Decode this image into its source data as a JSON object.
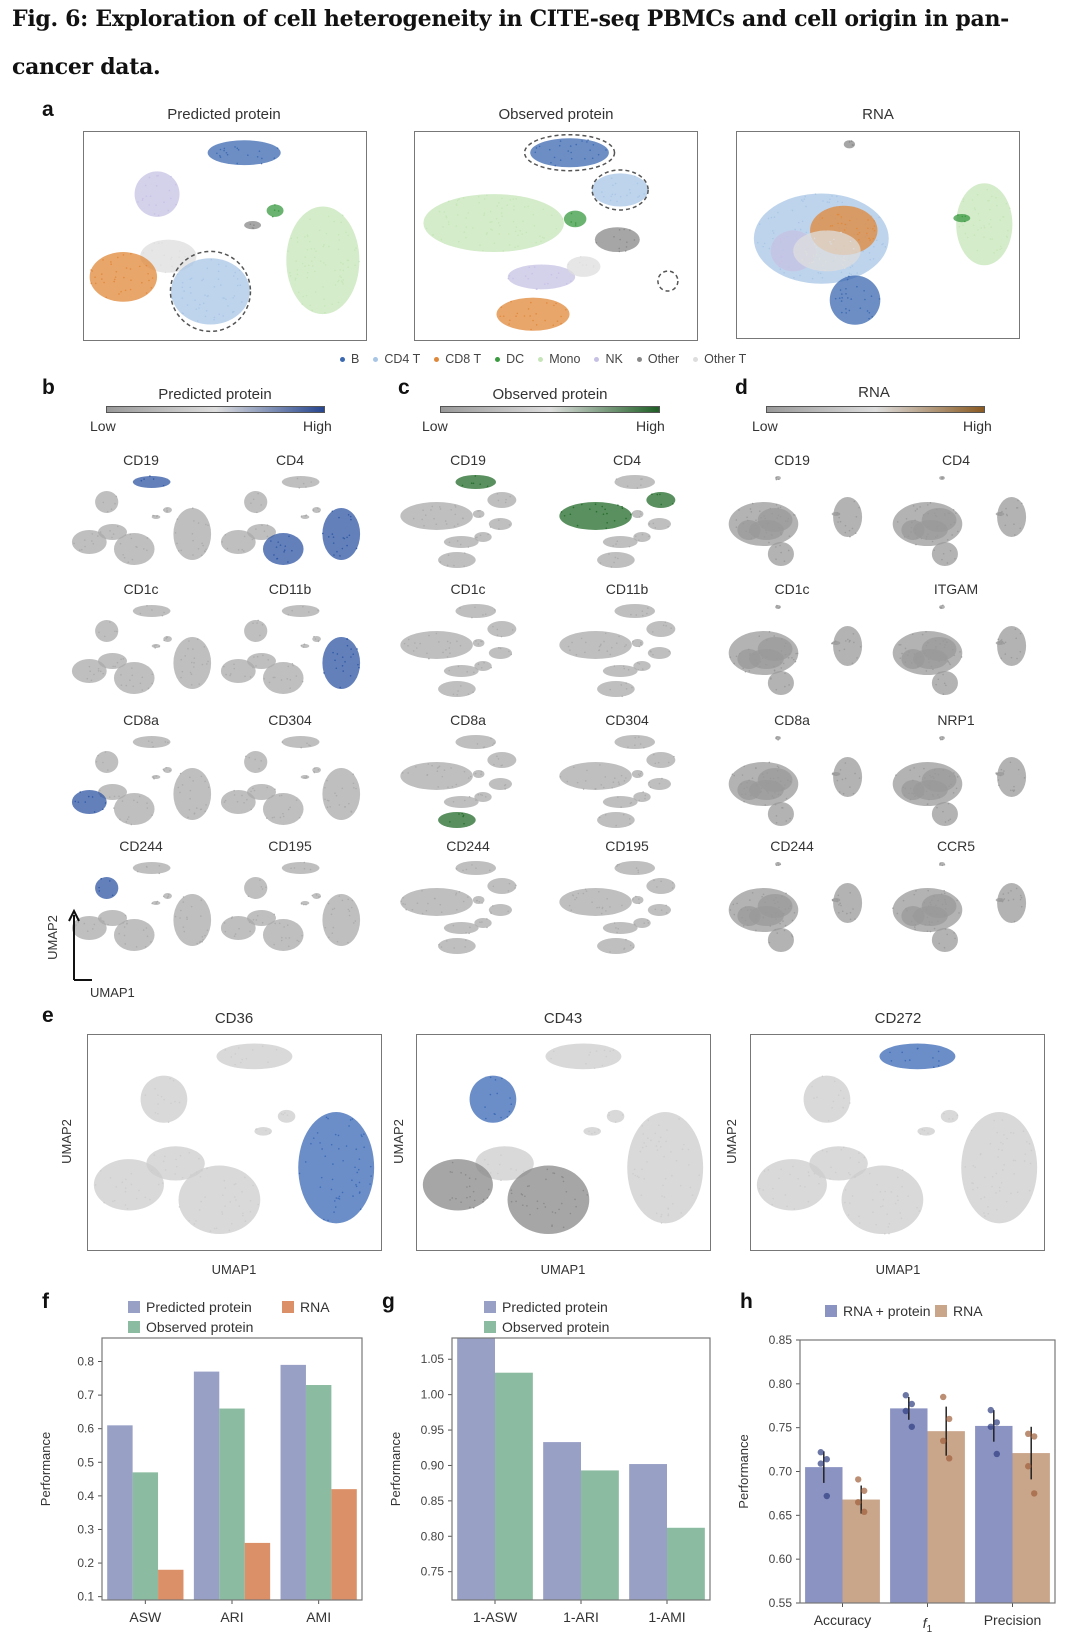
{
  "figure": {
    "title_line1": "Fig. 6: Exploration of cell heterogeneity in CITE-seq PBMCs and cell origin in pan-",
    "title_line2": "cancer data."
  },
  "panel_labels": {
    "a": "a",
    "b": "b",
    "c": "c",
    "d": "d",
    "e": "e",
    "f": "f",
    "g": "g",
    "h": "h"
  },
  "panel_a": {
    "titles": [
      "Predicted protein",
      "Observed protein",
      "RNA"
    ],
    "legend": [
      {
        "label": "B",
        "color": "#3b68b0"
      },
      {
        "label": "CD4 T",
        "color": "#a8c5e6"
      },
      {
        "label": "CD8 T",
        "color": "#e0883a"
      },
      {
        "label": "DC",
        "color": "#3a9a40"
      },
      {
        "label": "Mono",
        "color": "#c5e5b8"
      },
      {
        "label": "NK",
        "color": "#c6c1e4"
      },
      {
        "label": "Other",
        "color": "#888888"
      },
      {
        "label": "Other T",
        "color": "#dddddd"
      }
    ]
  },
  "colorbars": {
    "b": {
      "title": "Predicted protein",
      "low": "Low",
      "high": "High",
      "color": "#27468f"
    },
    "c": {
      "title": "Observed protein",
      "low": "Low",
      "high": "High",
      "color": "#1f5e25"
    },
    "d": {
      "title": "RNA",
      "low": "Low",
      "high": "High",
      "color": "#8a5a22"
    }
  },
  "panel_b": {
    "markers": [
      {
        "name": "CD19",
        "highlight": [
          "B"
        ]
      },
      {
        "name": "CD4",
        "highlight": [
          "CD4",
          "Mono"
        ]
      },
      {
        "name": "CD1c",
        "highlight": []
      },
      {
        "name": "CD11b",
        "highlight": [
          "Mono"
        ]
      },
      {
        "name": "CD8a",
        "highlight": [
          "CD8"
        ]
      },
      {
        "name": "CD304",
        "highlight": []
      },
      {
        "name": "CD244",
        "highlight": [
          "NK"
        ]
      },
      {
        "name": "CD195",
        "highlight": []
      }
    ]
  },
  "panel_c": {
    "markers": [
      {
        "name": "CD19",
        "highlight": [
          "B"
        ]
      },
      {
        "name": "CD4",
        "highlight": [
          "CD4",
          "Mono"
        ]
      },
      {
        "name": "CD1c",
        "highlight": []
      },
      {
        "name": "CD11b",
        "highlight": []
      },
      {
        "name": "CD8a",
        "highlight": [
          "CD8"
        ]
      },
      {
        "name": "CD304",
        "highlight": []
      },
      {
        "name": "CD244",
        "highlight": []
      },
      {
        "name": "CD195",
        "highlight": []
      }
    ]
  },
  "panel_d": {
    "markers": [
      {
        "name": "CD19",
        "highlight": []
      },
      {
        "name": "CD4",
        "highlight": []
      },
      {
        "name": "CD1c",
        "highlight": []
      },
      {
        "name": "ITGAM",
        "highlight": []
      },
      {
        "name": "CD8a",
        "highlight": []
      },
      {
        "name": "NRP1",
        "highlight": []
      },
      {
        "name": "CD244",
        "highlight": []
      },
      {
        "name": "CCR5",
        "highlight": []
      }
    ]
  },
  "umap_axes": {
    "x": "UMAP1",
    "y": "UMAP2"
  },
  "panel_e": {
    "plots": [
      {
        "title": "CD36",
        "highlight": [
          "Mono"
        ]
      },
      {
        "title": "CD43",
        "highlight": [
          "NK"
        ]
      },
      {
        "title": "CD272",
        "highlight": [
          "B"
        ]
      }
    ],
    "xlabel": "UMAP1",
    "ylabel": "UMAP2"
  },
  "chart_data": [
    {
      "id": "f",
      "type": "bar",
      "categories": [
        "ASW",
        "ARI",
        "AMI"
      ],
      "series": [
        {
          "name": "Predicted protein",
          "color": "#98a0c6",
          "values": [
            0.61,
            0.77,
            0.79
          ]
        },
        {
          "name": "Observed protein",
          "color": "#8bbba0",
          "values": [
            0.47,
            0.66,
            0.73
          ]
        },
        {
          "name": "RNA",
          "color": "#dc9068",
          "values": [
            0.18,
            0.26,
            0.42
          ]
        }
      ],
      "ylabel": "Performance",
      "ylim": [
        0.09,
        0.87
      ],
      "yticks": [
        "0.1",
        "0.2",
        "0.3",
        "0.4",
        "0.5",
        "0.6",
        "0.7",
        "0.8"
      ]
    },
    {
      "id": "g",
      "type": "bar",
      "categories": [
        "1-ASW",
        "1-ARI",
        "1-AMI"
      ],
      "series": [
        {
          "name": "Predicted protein",
          "color": "#98a0c6",
          "values": [
            1.08,
            0.933,
            0.902
          ]
        },
        {
          "name": "Observed protein",
          "color": "#8bbba0",
          "values": [
            1.031,
            0.893,
            0.812
          ]
        }
      ],
      "ylabel": "Performance",
      "ylim": [
        0.71,
        1.08
      ],
      "yticks": [
        "0.75",
        "0.80",
        "0.85",
        "0.90",
        "0.95",
        "1.00",
        "1.05"
      ]
    },
    {
      "id": "h",
      "type": "bar",
      "categories": [
        "Accuracy",
        "f1",
        "Precision"
      ],
      "series": [
        {
          "name": "RNA + protein",
          "color": "#8b93c2",
          "values": [
            0.705,
            0.772,
            0.752
          ],
          "errors": [
            0.018,
            0.013,
            0.018
          ],
          "points": [
            [
              0.722,
              0.714,
              0.709,
              0.672
            ],
            [
              0.787,
              0.777,
              0.769,
              0.751
            ],
            [
              0.77,
              0.756,
              0.751,
              0.72
            ]
          ],
          "point_color": "#2f3d80"
        },
        {
          "name": "RNA",
          "color": "#c9a58a",
          "values": [
            0.668,
            0.746,
            0.721
          ],
          "errors": [
            0.016,
            0.028,
            0.03
          ],
          "points": [
            [
              0.691,
              0.678,
              0.665,
              0.654
            ],
            [
              0.785,
              0.76,
              0.735,
              0.715
            ],
            [
              0.743,
              0.74,
              0.706,
              0.675
            ]
          ],
          "point_color": "#a0603a"
        }
      ],
      "ylabel": "Performance",
      "ylim": [
        0.55,
        0.85
      ],
      "yticks": [
        "0.55",
        "0.60",
        "0.65",
        "0.70",
        "0.75",
        "0.80",
        "0.85"
      ]
    }
  ]
}
